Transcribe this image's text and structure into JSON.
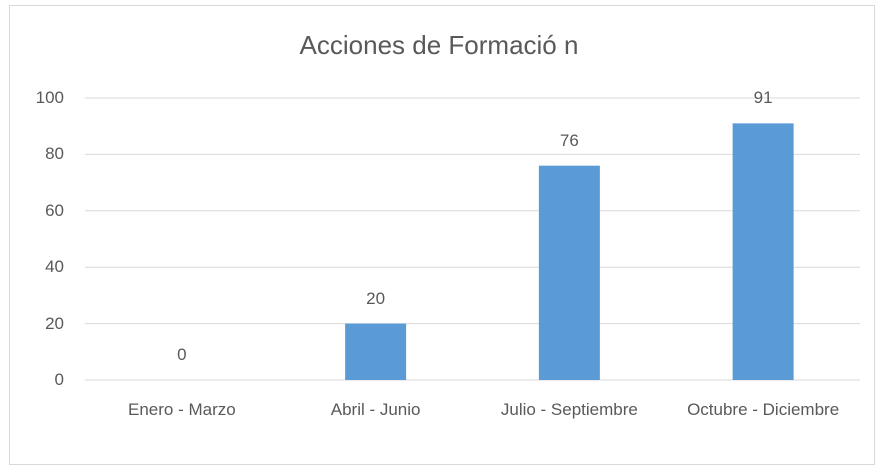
{
  "chart_data": {
    "type": "bar",
    "title": "Acciones de Formació n",
    "categories": [
      "Enero - Marzo",
      "Abril - Junio",
      "Julio - Septiembre",
      "Octubre - Diciembre"
    ],
    "values": [
      0,
      20,
      76,
      91
    ],
    "color": "#5b9bd5",
    "ylim": [
      0,
      100
    ],
    "yticks": [
      0,
      20,
      40,
      60,
      80,
      100
    ],
    "grid": true
  }
}
